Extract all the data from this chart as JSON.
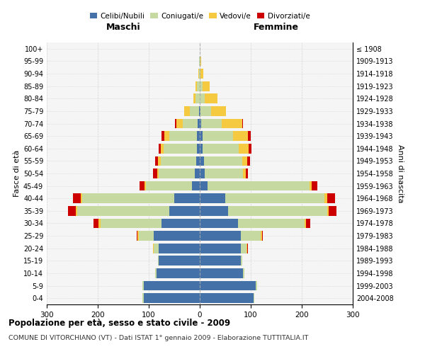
{
  "age_groups": [
    "0-4",
    "5-9",
    "10-14",
    "15-19",
    "20-24",
    "25-29",
    "30-34",
    "35-39",
    "40-44",
    "45-49",
    "50-54",
    "55-59",
    "60-64",
    "65-69",
    "70-74",
    "75-79",
    "80-84",
    "85-89",
    "90-94",
    "95-99",
    "100+"
  ],
  "birth_years": [
    "2004-2008",
    "1999-2003",
    "1994-1998",
    "1989-1993",
    "1984-1988",
    "1979-1983",
    "1974-1978",
    "1969-1973",
    "1964-1968",
    "1959-1963",
    "1954-1958",
    "1949-1953",
    "1944-1948",
    "1939-1943",
    "1934-1938",
    "1929-1933",
    "1924-1928",
    "1919-1923",
    "1914-1918",
    "1909-1913",
    "≤ 1908"
  ],
  "maschi": {
    "celibi": [
      110,
      110,
      85,
      80,
      80,
      90,
      75,
      60,
      50,
      15,
      10,
      7,
      6,
      5,
      4,
      2,
      0,
      0,
      0,
      0,
      0
    ],
    "coniugati": [
      2,
      2,
      2,
      2,
      10,
      30,
      120,
      180,
      180,
      90,
      70,
      70,
      65,
      55,
      30,
      18,
      8,
      5,
      2,
      1,
      0
    ],
    "vedovi": [
      0,
      0,
      0,
      0,
      1,
      2,
      3,
      3,
      3,
      3,
      3,
      5,
      5,
      10,
      12,
      10,
      5,
      3,
      1,
      0,
      0
    ],
    "divorziati": [
      0,
      0,
      0,
      0,
      1,
      2,
      10,
      15,
      15,
      10,
      8,
      5,
      5,
      5,
      2,
      0,
      0,
      0,
      0,
      0,
      0
    ]
  },
  "femmine": {
    "nubili": [
      105,
      110,
      85,
      80,
      80,
      80,
      75,
      55,
      50,
      15,
      10,
      8,
      6,
      5,
      3,
      2,
      0,
      0,
      0,
      0,
      0
    ],
    "coniugate": [
      2,
      2,
      2,
      3,
      12,
      40,
      130,
      195,
      195,
      200,
      75,
      75,
      70,
      60,
      40,
      20,
      10,
      5,
      2,
      1,
      0
    ],
    "vedove": [
      0,
      0,
      0,
      0,
      1,
      2,
      3,
      3,
      5,
      5,
      5,
      10,
      20,
      30,
      40,
      30,
      25,
      15,
      5,
      2,
      0
    ],
    "divorziate": [
      0,
      0,
      0,
      0,
      1,
      2,
      8,
      15,
      15,
      10,
      5,
      5,
      5,
      5,
      2,
      0,
      0,
      0,
      0,
      0,
      0
    ]
  },
  "color_celibi": "#4472a8",
  "color_coniugati": "#c5d9a0",
  "color_vedovi": "#f5c940",
  "color_divorziati": "#cc0000",
  "xlim": 300,
  "title": "Popolazione per età, sesso e stato civile - 2009",
  "subtitle": "COMUNE DI VITORCHIANO (VT) - Dati ISTAT 1° gennaio 2009 - Elaborazione TUTTITALIA.IT",
  "ylabel_left": "Fasce di età",
  "ylabel_right": "Anni di nascita",
  "xlabel_maschi": "Maschi",
  "xlabel_femmine": "Femmine",
  "bg_color": "#f5f5f5",
  "grid_color": "#cccccc"
}
